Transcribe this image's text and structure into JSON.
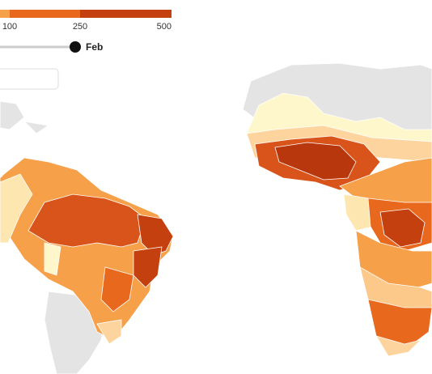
{
  "legend": {
    "ticks": [
      100,
      250,
      500
    ],
    "colors": [
      "#f7a04a",
      "#e8681e",
      "#c4400f"
    ]
  },
  "slider": {
    "label": "Feb"
  }
}
